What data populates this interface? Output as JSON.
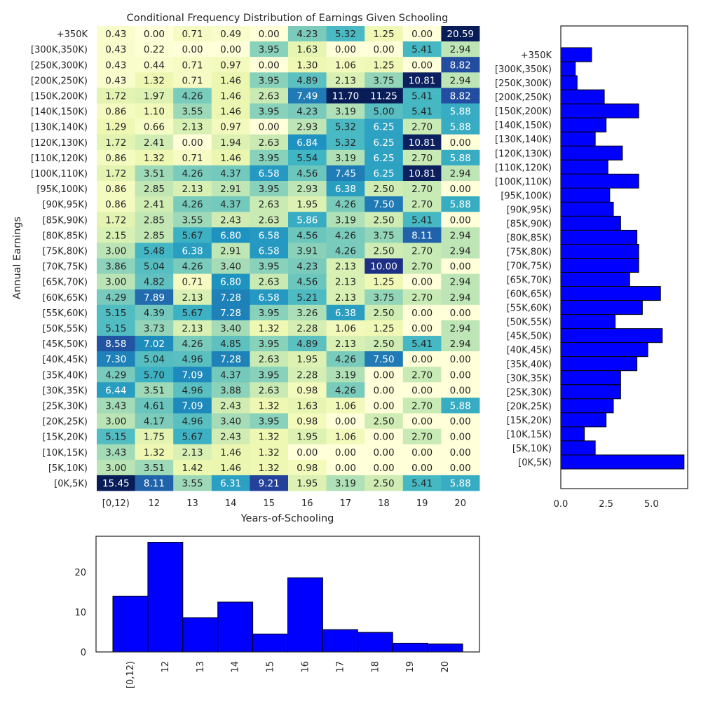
{
  "heatmap": {
    "type": "heatmap",
    "title": "Conditional Frequency Distribution of Earnings Given Schooling",
    "xlabel": "Years-of-Schooling",
    "ylabel": "Annual Earnings",
    "colormap": "YlGnBu",
    "value_range": [
      0,
      11
    ],
    "x_categories": [
      "[0,12)",
      "12",
      "13",
      "14",
      "15",
      "16",
      "17",
      "18",
      "19",
      "20"
    ],
    "y_categories": [
      "+350K",
      "[300K,350K)",
      "[250K,300K)",
      "[200K,250K)",
      "[150K,200K)",
      "[140K,150K)",
      "[130K,140K)",
      "[120K,130K)",
      "[110K,120K)",
      "[100K,110K)",
      "[95K,100K)",
      "[90K,95K)",
      "[85K,90K)",
      "[80K,85K)",
      "[75K,80K)",
      "[70K,75K)",
      "[65K,70K)",
      "[60K,65K)",
      "[55K,60K)",
      "[50K,55K)",
      "[45K,50K)",
      "[40K,45K)",
      "[35K,40K)",
      "[30K,35K)",
      "[25K,30K)",
      "[20K,25K)",
      "[15K,20K)",
      "[10K,15K)",
      "[5K,10K)",
      "[0K,5K)"
    ],
    "values": [
      [
        0.43,
        0.0,
        0.71,
        0.49,
        0.0,
        4.23,
        5.32,
        1.25,
        0.0,
        20.59
      ],
      [
        0.43,
        0.22,
        0.0,
        0.0,
        3.95,
        1.63,
        0.0,
        0.0,
        5.41,
        2.94
      ],
      [
        0.43,
        0.44,
        0.71,
        0.97,
        0.0,
        1.3,
        1.06,
        1.25,
        0.0,
        8.82
      ],
      [
        0.43,
        1.32,
        0.71,
        1.46,
        3.95,
        4.89,
        2.13,
        3.75,
        10.81,
        2.94
      ],
      [
        1.72,
        1.97,
        4.26,
        1.46,
        2.63,
        7.49,
        11.7,
        11.25,
        5.41,
        8.82
      ],
      [
        0.86,
        1.1,
        3.55,
        1.46,
        3.95,
        4.23,
        3.19,
        5.0,
        5.41,
        5.88
      ],
      [
        1.29,
        0.66,
        2.13,
        0.97,
        0.0,
        2.93,
        5.32,
        6.25,
        2.7,
        5.88
      ],
      [
        1.72,
        2.41,
        0.0,
        1.94,
        2.63,
        6.84,
        5.32,
        6.25,
        10.81,
        0.0
      ],
      [
        0.86,
        1.32,
        0.71,
        1.46,
        3.95,
        5.54,
        3.19,
        6.25,
        2.7,
        5.88
      ],
      [
        1.72,
        3.51,
        4.26,
        4.37,
        6.58,
        4.56,
        7.45,
        6.25,
        10.81,
        2.94
      ],
      [
        0.86,
        2.85,
        2.13,
        2.91,
        3.95,
        2.93,
        6.38,
        2.5,
        2.7,
        0.0
      ],
      [
        0.86,
        2.41,
        4.26,
        4.37,
        2.63,
        1.95,
        4.26,
        7.5,
        2.7,
        5.88
      ],
      [
        1.72,
        2.85,
        3.55,
        2.43,
        2.63,
        5.86,
        3.19,
        2.5,
        5.41,
        0.0
      ],
      [
        2.15,
        2.85,
        5.67,
        6.8,
        6.58,
        4.56,
        4.26,
        3.75,
        8.11,
        2.94
      ],
      [
        3.0,
        5.48,
        6.38,
        2.91,
        6.58,
        3.91,
        4.26,
        2.5,
        2.7,
        2.94
      ],
      [
        3.86,
        5.04,
        4.26,
        3.4,
        3.95,
        4.23,
        2.13,
        10.0,
        2.7,
        0.0
      ],
      [
        3.0,
        4.82,
        0.71,
        6.8,
        2.63,
        4.56,
        2.13,
        1.25,
        0.0,
        2.94
      ],
      [
        4.29,
        7.89,
        2.13,
        7.28,
        6.58,
        5.21,
        2.13,
        3.75,
        2.7,
        2.94
      ],
      [
        5.15,
        4.39,
        5.67,
        7.28,
        3.95,
        3.26,
        6.38,
        2.5,
        0.0,
        0.0
      ],
      [
        5.15,
        3.73,
        2.13,
        3.4,
        1.32,
        2.28,
        1.06,
        1.25,
        0.0,
        2.94
      ],
      [
        8.58,
        7.02,
        4.26,
        4.85,
        3.95,
        4.89,
        2.13,
        2.5,
        5.41,
        2.94
      ],
      [
        7.3,
        5.04,
        4.96,
        7.28,
        2.63,
        1.95,
        4.26,
        7.5,
        0.0,
        0.0
      ],
      [
        4.29,
        5.7,
        7.09,
        4.37,
        3.95,
        2.28,
        3.19,
        0.0,
        2.7,
        0.0
      ],
      [
        6.44,
        3.51,
        4.96,
        3.88,
        2.63,
        0.98,
        4.26,
        0.0,
        0.0,
        0.0
      ],
      [
        3.43,
        4.61,
        7.09,
        2.43,
        1.32,
        1.63,
        1.06,
        0.0,
        2.7,
        5.88
      ],
      [
        3.0,
        4.17,
        4.96,
        3.4,
        3.95,
        0.98,
        0.0,
        2.5,
        0.0,
        0.0
      ],
      [
        5.15,
        1.75,
        5.67,
        2.43,
        1.32,
        1.95,
        1.06,
        0.0,
        2.7,
        0.0
      ],
      [
        3.43,
        1.32,
        2.13,
        1.46,
        1.32,
        0.0,
        0.0,
        0.0,
        0.0,
        0.0
      ],
      [
        3.0,
        3.51,
        1.42,
        1.46,
        1.32,
        0.98,
        0.0,
        0.0,
        0.0,
        0.0
      ],
      [
        15.45,
        8.11,
        3.55,
        6.31,
        9.21,
        1.95,
        3.19,
        2.5,
        5.41,
        5.88
      ]
    ]
  },
  "right_hist": {
    "type": "bar",
    "orientation": "horizontal",
    "bar_color": "#0000ff",
    "xlim": [
      0,
      7
    ],
    "xticks": [
      "0.0",
      "2.5",
      "5.0"
    ],
    "xtick_values": [
      0,
      2.5,
      5.0
    ],
    "categories": [
      "+350K",
      "[300K,350K)",
      "[250K,300K)",
      "[200K,250K)",
      "[150K,200K)",
      "[140K,150K)",
      "[130K,140K)",
      "[120K,130K)",
      "[110K,120K)",
      "[100K,110K)",
      "[95K,100K)",
      "[90K,95K)",
      "[85K,90K)",
      "[80K,85K)",
      "[75K,80K)",
      "[70K,75K)",
      "[65K,70K)",
      "[60K,65K)",
      "[55K,60K)",
      "[50K,55K)",
      "[45K,50K)",
      "[40K,45K)",
      "[35K,40K)",
      "[30K,35K)",
      "[25K,30K)",
      "[20K,25K)",
      "[15K,20K)",
      "[10K,15K)",
      "[5K,10K)",
      "[0K,5K)"
    ],
    "values": [
      1.7,
      0.8,
      0.9,
      2.4,
      4.3,
      2.5,
      1.9,
      3.4,
      2.6,
      4.3,
      2.7,
      2.9,
      3.3,
      4.2,
      4.3,
      4.3,
      3.8,
      5.5,
      4.5,
      3.0,
      5.6,
      4.8,
      4.2,
      3.3,
      3.3,
      2.9,
      2.5,
      1.3,
      1.9,
      6.8
    ]
  },
  "bottom_hist": {
    "type": "bar",
    "bar_color": "#0000ff",
    "ylim": [
      0,
      29
    ],
    "yticks": [
      "0",
      "10",
      "20"
    ],
    "ytick_values": [
      0,
      10,
      20
    ],
    "categories": [
      "[0,12)",
      "12",
      "13",
      "14",
      "15",
      "16",
      "17",
      "18",
      "19",
      "20"
    ],
    "values": [
      14.0,
      27.5,
      8.6,
      12.5,
      4.5,
      18.6,
      5.6,
      4.9,
      2.2,
      2.0
    ]
  }
}
